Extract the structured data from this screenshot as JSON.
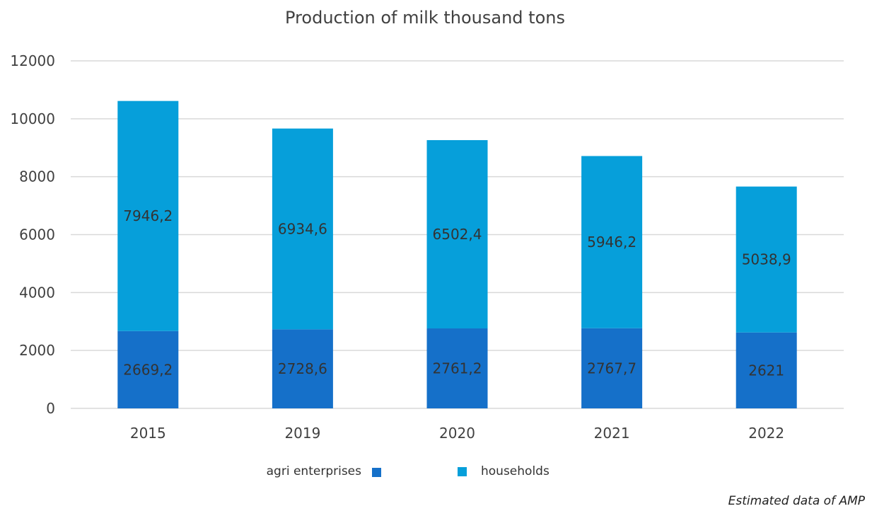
{
  "chart_data": {
    "type": "bar",
    "stacked": true,
    "title": "Production of milk thousand tons",
    "xlabel": "",
    "ylabel": "",
    "categories": [
      "2015",
      "2019",
      "2020",
      "2021",
      "2022"
    ],
    "series": [
      {
        "name": "agri enterprises",
        "color": "#1570c9",
        "values": [
          2669.2,
          2728.6,
          2761.2,
          2767.7,
          2621
        ],
        "labels": [
          "2669,2",
          "2728,6",
          "2761,2",
          "2767,7",
          "2621"
        ]
      },
      {
        "name": "households",
        "color": "#069fda",
        "values": [
          7946.2,
          6934.6,
          6502.4,
          5946.2,
          5038.9
        ],
        "labels": [
          "7946,2",
          "6934,6",
          "6502,4",
          "5946,2",
          "5038,9"
        ]
      }
    ],
    "ylim": [
      0,
      12000
    ],
    "yticks": [
      0,
      2000,
      4000,
      6000,
      8000,
      10000,
      12000
    ],
    "grid": true,
    "legend_position": "bottom"
  },
  "footnote": "Estimated data of AMP"
}
